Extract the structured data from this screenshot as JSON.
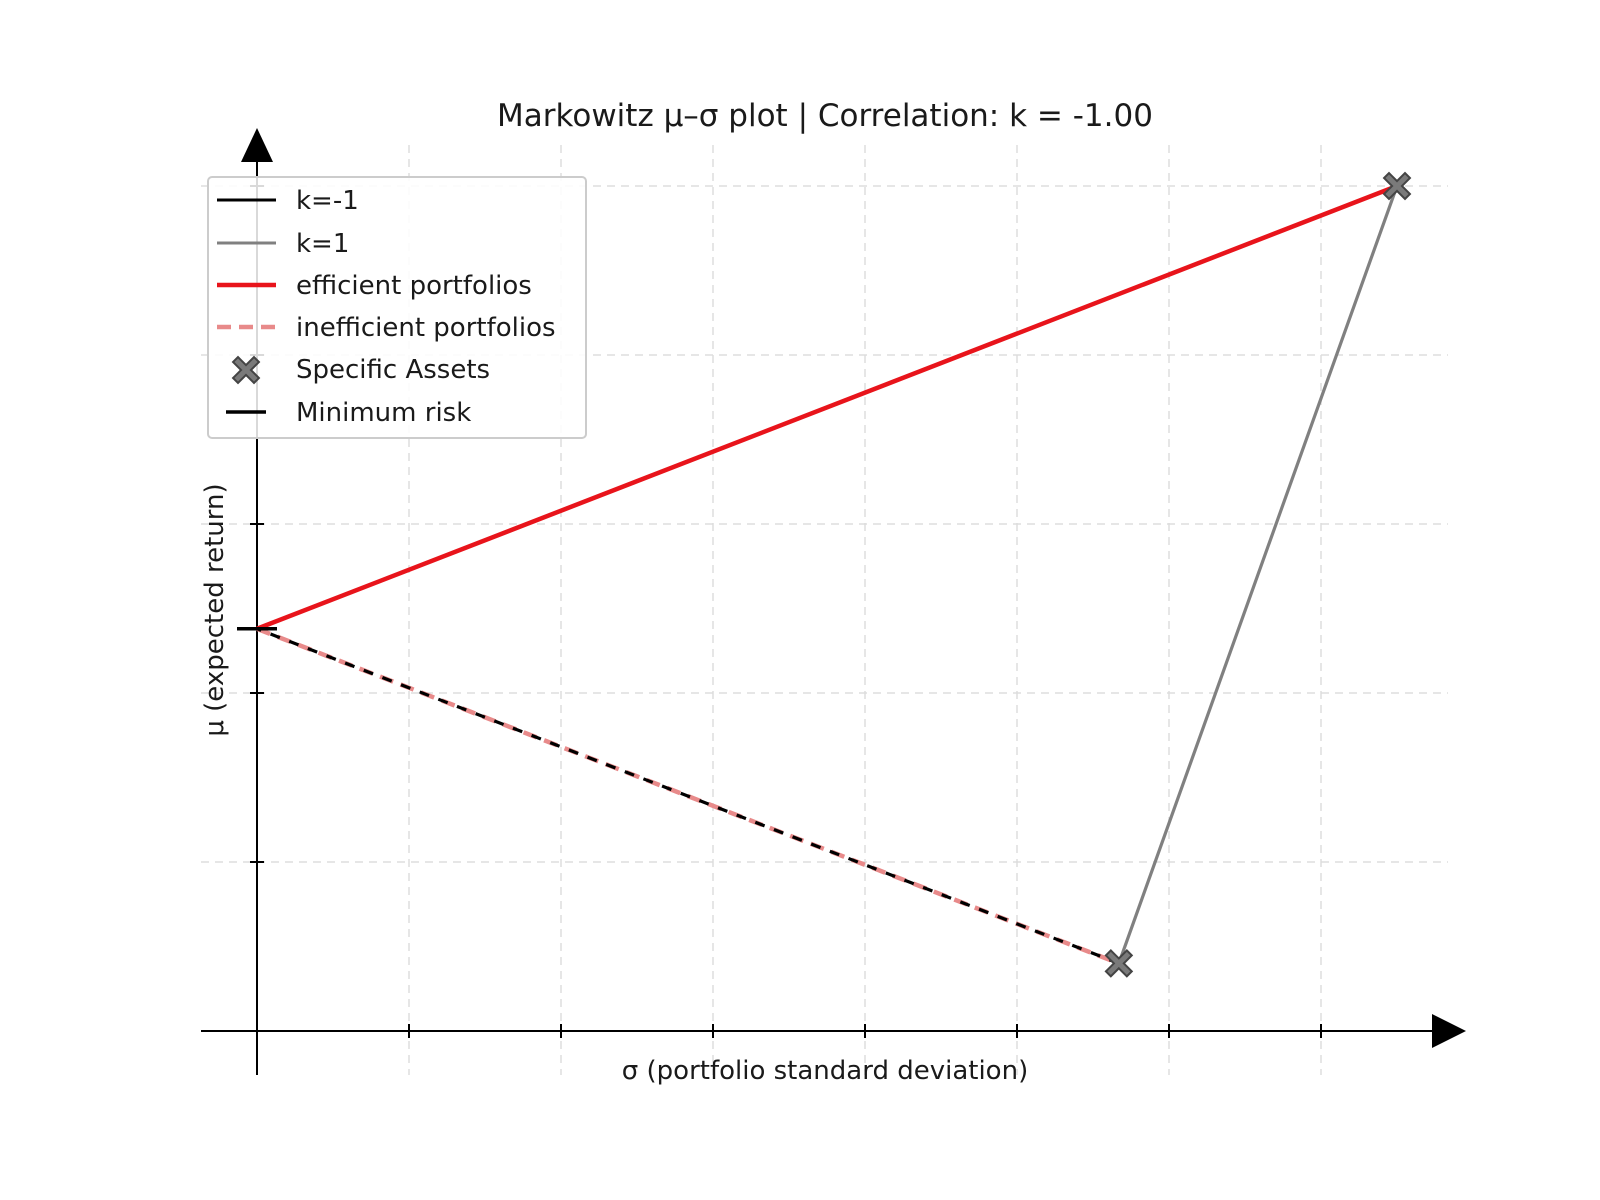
{
  "chart_data": {
    "type": "line",
    "title": "Markowitz μ–σ plot | Correlation: k = -1.00",
    "xlabel": "σ  (portfolio standard deviation)",
    "ylabel": "μ  (expected return)",
    "xlim": [
      0,
      0.079
    ],
    "ylim": [
      0,
      0.05
    ],
    "grid": true,
    "legend_position": "top-left",
    "x_ticks": [
      0,
      0.01,
      0.02,
      0.03,
      0.04,
      0.05,
      0.06,
      0.07
    ],
    "y_ticks": [
      0,
      0.01,
      0.02,
      0.03,
      0.04,
      0.05
    ],
    "series": [
      {
        "name": "k=-1",
        "style": "solid",
        "color": "#000000",
        "x": [
          0.0567,
          0.0,
          0.075
        ],
        "y": [
          0.004,
          0.0238,
          0.05
        ]
      },
      {
        "name": "k=1",
        "style": "solid",
        "color": "#808080",
        "x": [
          0.0567,
          0.075
        ],
        "y": [
          0.004,
          0.05
        ]
      },
      {
        "name": "efficient portfolios",
        "style": "solid",
        "color": "#e8141b",
        "x": [
          0.0,
          0.075
        ],
        "y": [
          0.0238,
          0.05
        ]
      },
      {
        "name": "inefficient portfolios",
        "style": "dashed",
        "color": "#e88a8a",
        "x": [
          0.0,
          0.0567
        ],
        "y": [
          0.0238,
          0.004
        ]
      }
    ],
    "assets": {
      "name": "Specific Assets",
      "marker": "x",
      "color": "#6e6e6e",
      "points": [
        {
          "x": 0.0567,
          "y": 0.004
        },
        {
          "x": 0.075,
          "y": 0.05
        }
      ]
    },
    "minimum_risk": {
      "name": "Minimum risk",
      "marker": "hline",
      "color": "#000000",
      "x": 0.0,
      "y": 0.0238
    }
  }
}
